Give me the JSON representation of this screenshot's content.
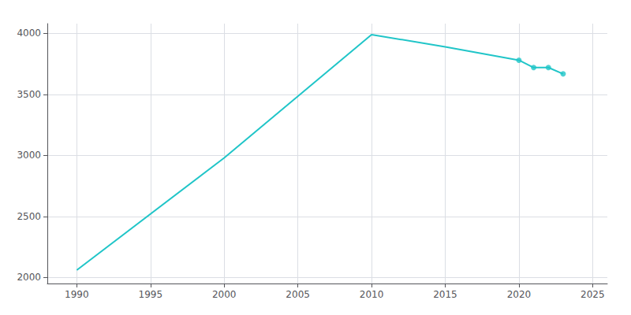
{
  "chart_data": {
    "type": "line",
    "x": [
      1990,
      2000,
      2010,
      2015,
      2020,
      2021,
      2022,
      2023
    ],
    "series": [
      {
        "type": "line",
        "color": "#20c5c8",
        "marker": "none",
        "values": [
          2060,
          2980,
          3990,
          3890,
          3780,
          3720,
          3720,
          3668
        ]
      },
      {
        "type": "scatter",
        "color": "#20c5c8",
        "marker": "circle",
        "values": [
          null,
          null,
          null,
          null,
          3780,
          3720,
          3720,
          3668
        ]
      }
    ],
    "xlim": [
      1988,
      2026
    ],
    "ylim": [
      1950,
      4080
    ],
    "xticks": [
      1990,
      1995,
      2000,
      2005,
      2010,
      2015,
      2020,
      2025
    ],
    "yticks": [
      2000,
      2500,
      3000,
      3500,
      4000
    ],
    "grid": true
  }
}
